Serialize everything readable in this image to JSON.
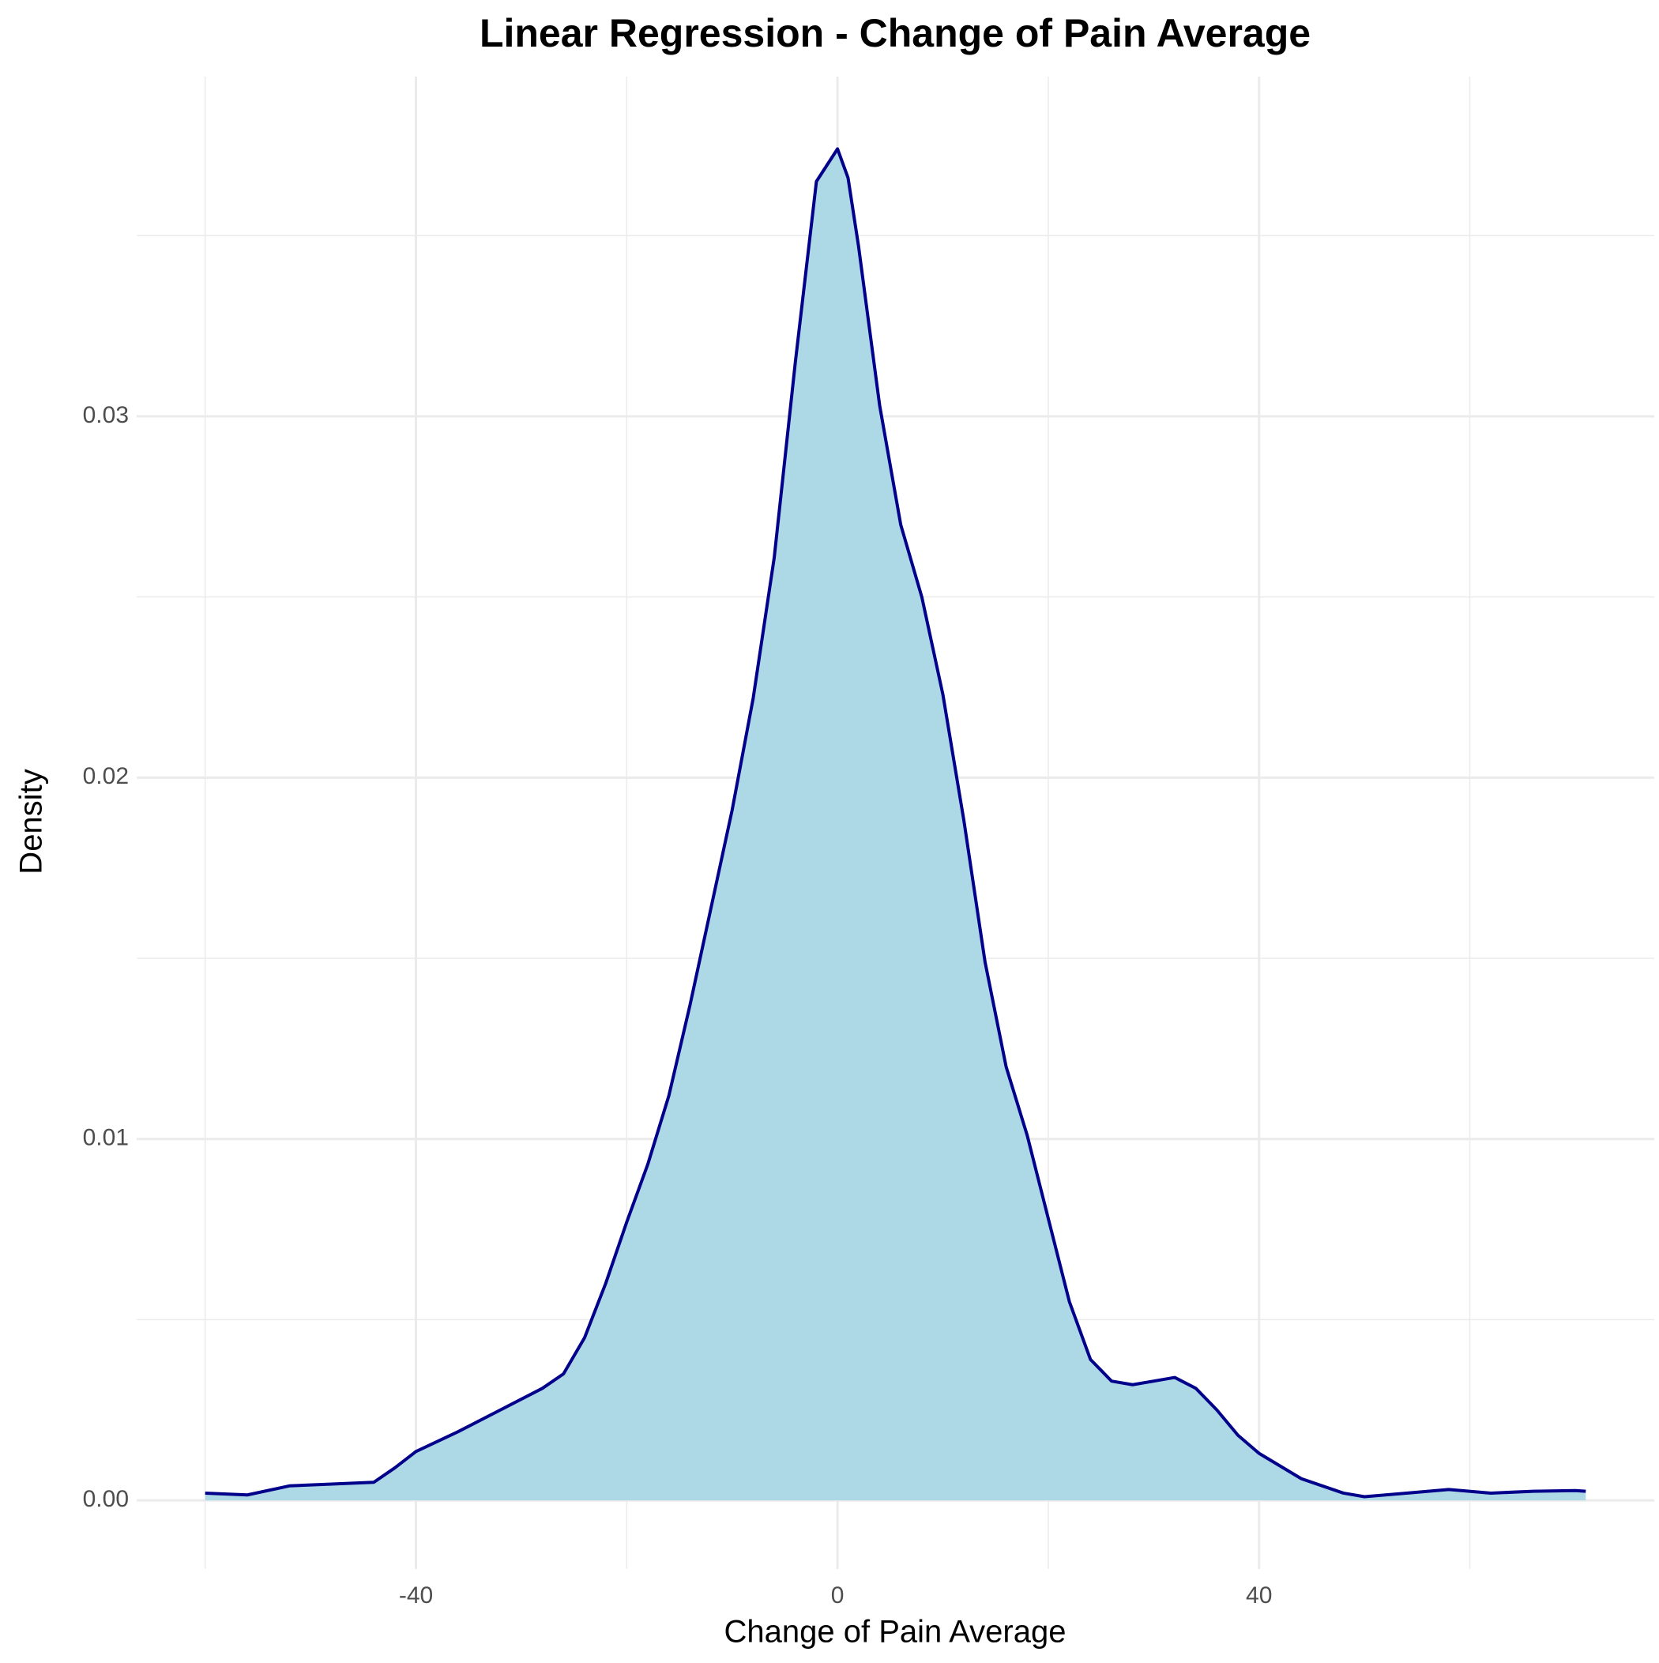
{
  "chart_data": {
    "type": "density",
    "title": "Linear Regression - Change of Pain Average",
    "x_label": "Change of Pain Average",
    "y_label": "Density",
    "x": [
      -60,
      -56,
      -52,
      -48,
      -44,
      -42,
      -40,
      -36,
      -32,
      -28,
      -26,
      -24,
      -22,
      -20,
      -18,
      -16,
      -14,
      -12,
      -10,
      -8,
      -6,
      -4,
      -2,
      0,
      1,
      2,
      4,
      6,
      8,
      10,
      12,
      14,
      16,
      18,
      20,
      22,
      24,
      26,
      28,
      30,
      32,
      34,
      36,
      38,
      40,
      44,
      48,
      50,
      54,
      58,
      62,
      66,
      70,
      71
    ],
    "values": [
      0.0002,
      0.00015,
      0.0004,
      0.00045,
      0.0005,
      0.0009,
      0.00135,
      0.0019,
      0.0025,
      0.0031,
      0.0035,
      0.0045,
      0.006,
      0.0077,
      0.0093,
      0.0112,
      0.0137,
      0.0164,
      0.0191,
      0.0222,
      0.0261,
      0.0315,
      0.0365,
      0.0374,
      0.0366,
      0.0347,
      0.0303,
      0.027,
      0.025,
      0.0223,
      0.0188,
      0.0149,
      0.012,
      0.0101,
      0.0078,
      0.0055,
      0.0039,
      0.0033,
      0.0032,
      0.0033,
      0.0034,
      0.0031,
      0.0025,
      0.0018,
      0.0013,
      0.0006,
      0.0002,
      0.0001,
      0.0002,
      0.0003,
      0.0002,
      0.00025,
      0.00027,
      0.00025
    ],
    "color": "#00008b",
    "fill": "#add8e6",
    "xlim": [
      -66.5,
      77.5
    ],
    "ylim": [
      -0.0019,
      0.0394
    ],
    "xticks": [
      -40,
      0,
      40
    ],
    "yticks": [
      {
        "value": 0,
        "label": "0.00"
      },
      {
        "value": 0.01,
        "label": "0.01"
      },
      {
        "value": 0.02,
        "label": "0.02"
      },
      {
        "value": 0.03,
        "label": "0.03"
      }
    ],
    "xminor": [
      -60,
      -20,
      20,
      60
    ],
    "yminor": [
      0.005,
      0.015,
      0.025,
      0.035
    ],
    "grid": true
  }
}
